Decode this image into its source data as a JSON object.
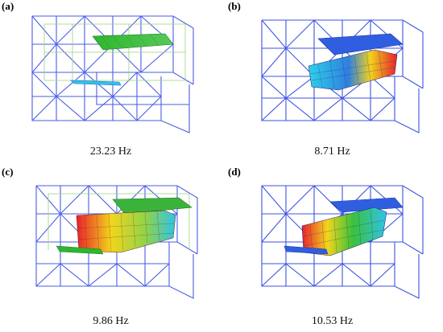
{
  "panels": [
    {
      "label": "(a)",
      "frequency": "23.23 Hz"
    },
    {
      "label": "(b)",
      "frequency": "8.71 Hz"
    },
    {
      "label": "(c)",
      "frequency": "9.86 Hz"
    },
    {
      "label": "(d)",
      "frequency": "10.53 Hz"
    }
  ],
  "colors": {
    "frame_blue": "#3b4fe0",
    "frame_light": "#7ea7ff",
    "frame_green": "#8ed36b",
    "plate_green": "#3bb33b",
    "plate_blue": "#2f5fe0",
    "hot_red": "#e8202a",
    "mid_yellow": "#f2d51c",
    "cool_cyan": "#27c7e6"
  }
}
